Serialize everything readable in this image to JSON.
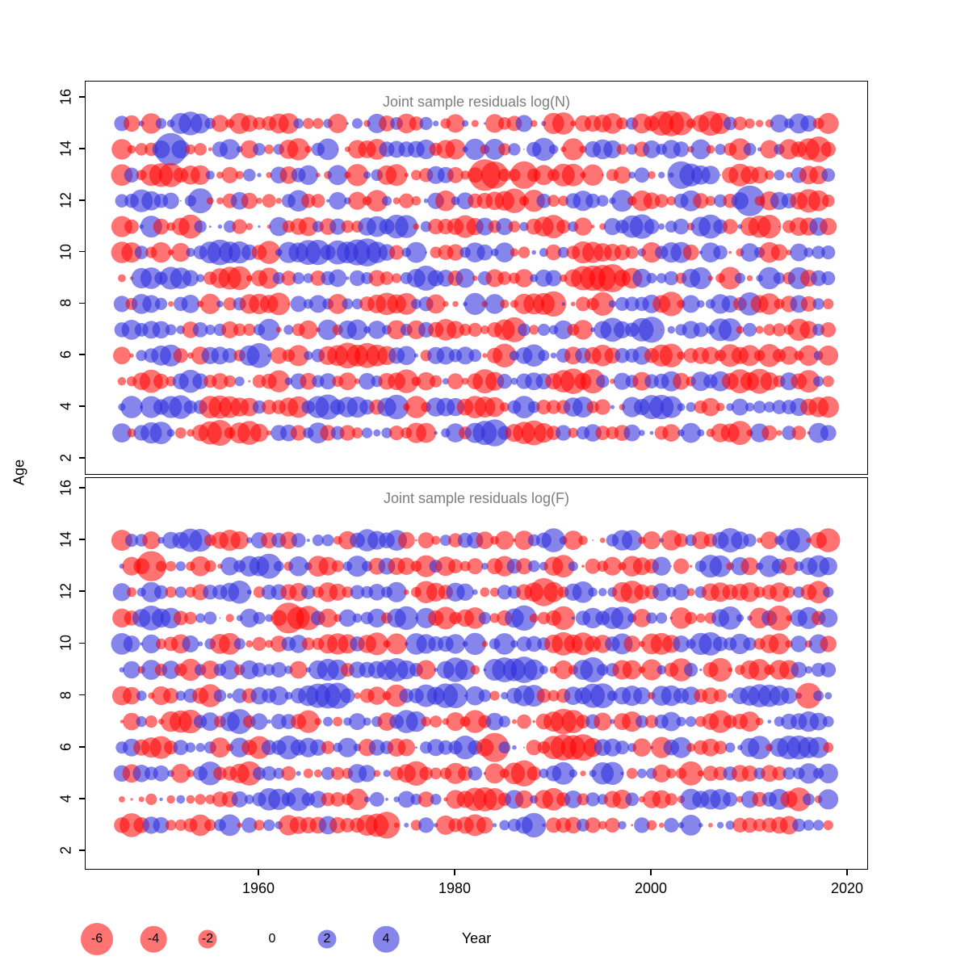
{
  "figure": {
    "ylabel": "Age",
    "xlabel": "Year",
    "x_ticks": [
      1960,
      1980,
      2000,
      2020
    ],
    "y_ticks": [
      2,
      4,
      6,
      8,
      10,
      12,
      14,
      16
    ],
    "years": {
      "start": 1946,
      "end": 2018
    },
    "panels": [
      {
        "id": "logN",
        "title": "Joint sample residuals log(N)",
        "ages": [
          3,
          4,
          5,
          6,
          7,
          8,
          9,
          10,
          11,
          12,
          13,
          14,
          15
        ]
      },
      {
        "id": "logF",
        "title": "Joint sample residuals log(F)",
        "ages": [
          3,
          4,
          5,
          6,
          7,
          8,
          9,
          10,
          11,
          12,
          13,
          14
        ]
      }
    ],
    "legend": {
      "values": [
        -6,
        -4,
        -2,
        0,
        2,
        4
      ]
    },
    "colors": {
      "negative": "rgba(255,0,0,0.55)",
      "positive": "rgba(45,45,220,0.58)",
      "title_gray": "#7e7e7e",
      "axis": "#000000"
    }
  },
  "chart_data": {
    "type": "bubble",
    "panels": [
      {
        "title": "Joint sample residuals log(N)",
        "ages_min": 3,
        "ages_max": 15
      },
      {
        "title": "Joint sample residuals log(F)",
        "ages_min": 3,
        "ages_max": 14
      }
    ],
    "xlabel": "Year",
    "ylabel": "Age",
    "x_range": [
      1946,
      2018
    ],
    "ylim": [
      1.5,
      16.5
    ],
    "x_ticks": [
      1960,
      1980,
      2000,
      2020
    ],
    "y_ticks": [
      2,
      4,
      6,
      8,
      10,
      12,
      14,
      16
    ],
    "encoding": {
      "mark": "circle per year-age cell",
      "size": "circle area proportional to |residual|",
      "color_negative": "red",
      "color_positive": "blue",
      "legend_reference_values": [
        -6,
        -4,
        -2,
        0,
        2,
        4
      ],
      "residual_range_shown": [
        -6,
        4
      ]
    }
  }
}
